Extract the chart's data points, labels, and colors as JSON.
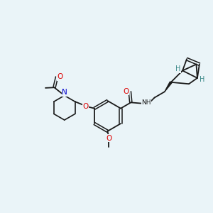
{
  "bg_color": "#eaf4f8",
  "bond_color": "#1a1a1a",
  "o_color": "#dd0000",
  "n_color": "#0000cc",
  "h_color": "#3a8888",
  "figsize": [
    3.0,
    3.0
  ],
  "dpi": 100,
  "xlim": [
    0,
    10
  ],
  "ylim": [
    0,
    10
  ]
}
